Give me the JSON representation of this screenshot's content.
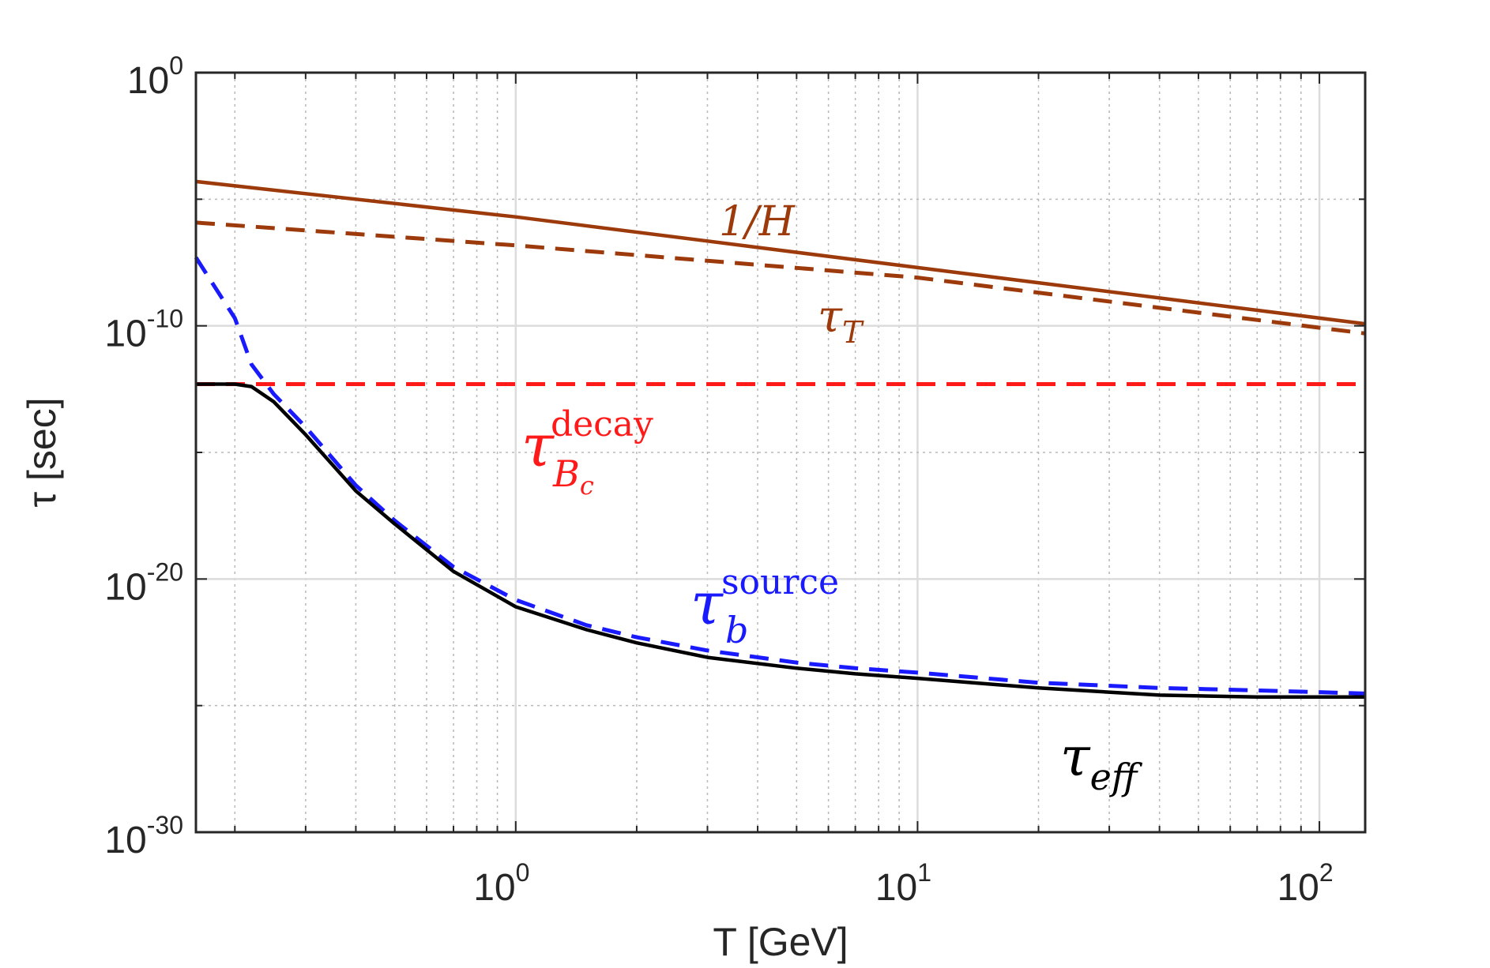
{
  "chart_data": {
    "type": "line",
    "xscale": "log",
    "yscale": "log",
    "xlim": [
      0.16,
      130
    ],
    "ylim": [
      1e-30,
      1
    ],
    "xlabel": "T [GeV]",
    "ylabel": "τ [sec]",
    "grid": true,
    "x_ticks": [
      {
        "value": 1,
        "base": "10",
        "exp": "0"
      },
      {
        "value": 10,
        "base": "10",
        "exp": "1"
      },
      {
        "value": 100,
        "base": "10",
        "exp": "2"
      }
    ],
    "y_ticks": [
      {
        "value": 1,
        "base": "10",
        "exp": "0"
      },
      {
        "value": 1e-10,
        "base": "10",
        "exp": "-10"
      },
      {
        "value": 1e-20,
        "base": "10",
        "exp": "-20"
      },
      {
        "value": 1e-30,
        "base": "10",
        "exp": "-30"
      }
    ],
    "series": [
      {
        "name": "1/H",
        "color": "#9c3a0c",
        "dash": "solid",
        "x": [
          0.16,
          1,
          10,
          130
        ],
        "y": [
          5e-05,
          2e-06,
          2e-08,
          1.2e-10
        ]
      },
      {
        "name": "τ_T",
        "color": "#9c3a0c",
        "dash": "dashed",
        "x": [
          0.16,
          1,
          10,
          130
        ],
        "y": [
          1.2e-06,
          1.5e-07,
          8e-09,
          5e-11
        ]
      },
      {
        "name": "τ_Bc^decay",
        "color": "#ff1a1a",
        "dash": "dashed",
        "x": [
          0.16,
          130
        ],
        "y": [
          5e-13,
          5e-13
        ]
      },
      {
        "name": "τ_b^source",
        "color": "#1a1aff",
        "dash": "dashed",
        "x": [
          0.16,
          0.2,
          0.22,
          0.25,
          0.3,
          0.4,
          0.5,
          0.7,
          1,
          1.5,
          2,
          3,
          5,
          7,
          10,
          20,
          40,
          70,
          130
        ],
        "y": [
          5e-08,
          2e-10,
          3e-12,
          2e-13,
          1e-14,
          5e-17,
          2e-18,
          3e-20,
          1.5e-21,
          1.5e-22,
          5e-23,
          1.5e-23,
          5e-24,
          3e-24,
          2e-24,
          8e-25,
          5e-25,
          4e-25,
          3e-25
        ]
      },
      {
        "name": "τ_eff",
        "color": "#000000",
        "dash": "solid",
        "x": [
          0.16,
          0.2,
          0.22,
          0.25,
          0.3,
          0.4,
          0.5,
          0.7,
          1,
          1.5,
          2,
          3,
          5,
          7,
          10,
          20,
          40,
          70,
          130
        ],
        "y": [
          5e-13,
          5e-13,
          4e-13,
          1e-13,
          5e-15,
          3e-17,
          1.5e-18,
          2e-20,
          8e-22,
          1e-22,
          3e-23,
          8e-24,
          3e-24,
          1.8e-24,
          1.2e-24,
          5e-25,
          2.6e-25,
          2.2e-25,
          2.2e-25
        ]
      }
    ],
    "annotations": [
      {
        "id": "inv-h",
        "color": "#9c3a0c",
        "main": "1/H",
        "sub": "",
        "sup": ""
      },
      {
        "id": "tau-t",
        "color": "#9c3a0c",
        "main": "τ",
        "sub": "T",
        "sup": ""
      },
      {
        "id": "tau-bc-decay",
        "color": "#ff1a1a",
        "main": "τ",
        "sub": "B",
        "subsub": "c",
        "sup": "decay"
      },
      {
        "id": "tau-b-source",
        "color": "#1a1aff",
        "main": "τ",
        "sub": "b",
        "sup": "source"
      },
      {
        "id": "tau-eff",
        "color": "#000000",
        "main": "τ",
        "sub": "eff",
        "sup": ""
      }
    ]
  }
}
